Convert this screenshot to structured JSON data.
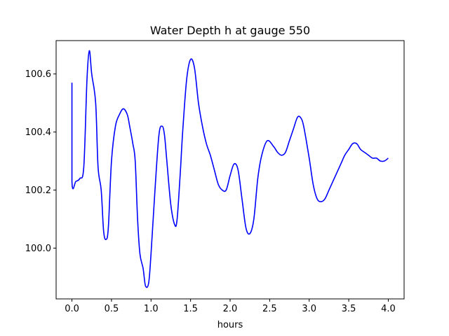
{
  "chart_data": {
    "type": "line",
    "title": "Water Depth h at gauge 550",
    "xlabel": "hours",
    "ylabel": "",
    "xlim": [
      -0.2,
      4.2
    ],
    "ylim": [
      99.825,
      100.715
    ],
    "xticks": [
      0.0,
      0.5,
      1.0,
      1.5,
      2.0,
      2.5,
      3.0,
      3.5,
      4.0
    ],
    "xtick_labels": [
      "0.0",
      "0.5",
      "1.0",
      "1.5",
      "2.0",
      "2.5",
      "3.0",
      "3.5",
      "4.0"
    ],
    "yticks": [
      100.0,
      100.2,
      100.4,
      100.6
    ],
    "ytick_labels": [
      "100.0",
      "100.2",
      "100.4",
      "100.6"
    ],
    "grid": false,
    "series": [
      {
        "name": "",
        "color": "#0000ff",
        "x": [
          0.0,
          0.0,
          0.05,
          0.1,
          0.15,
          0.19,
          0.22,
          0.25,
          0.3,
          0.33,
          0.37,
          0.4,
          0.43,
          0.46,
          0.5,
          0.55,
          0.6,
          0.65,
          0.7,
          0.73,
          0.77,
          0.8,
          0.83,
          0.86,
          0.9,
          0.93,
          0.97,
          1.0,
          1.05,
          1.1,
          1.14,
          1.17,
          1.2,
          1.25,
          1.3,
          1.33,
          1.37,
          1.4,
          1.45,
          1.5,
          1.55,
          1.6,
          1.65,
          1.7,
          1.75,
          1.8,
          1.85,
          1.9,
          1.95,
          2.0,
          2.05,
          2.1,
          2.15,
          2.2,
          2.25,
          2.3,
          2.35,
          2.4,
          2.47,
          2.55,
          2.6,
          2.65,
          2.7,
          2.75,
          2.8,
          2.85,
          2.89,
          2.93,
          3.0,
          3.05,
          3.1,
          3.15,
          3.2,
          3.25,
          3.3,
          3.35,
          3.4,
          3.45,
          3.5,
          3.55,
          3.6,
          3.65,
          3.7,
          3.75,
          3.8,
          3.85,
          3.9,
          3.95,
          4.0
        ],
        "y": [
          100.57,
          100.23,
          100.23,
          100.24,
          100.28,
          100.58,
          100.68,
          100.6,
          100.5,
          100.28,
          100.2,
          100.06,
          100.03,
          100.07,
          100.3,
          100.42,
          100.46,
          100.48,
          100.46,
          100.42,
          100.36,
          100.3,
          100.1,
          99.98,
          99.93,
          99.87,
          99.88,
          99.98,
          100.2,
          100.39,
          100.42,
          100.39,
          100.3,
          100.15,
          100.08,
          100.1,
          100.26,
          100.4,
          100.58,
          100.65,
          100.62,
          100.5,
          100.42,
          100.36,
          100.32,
          100.27,
          100.22,
          100.2,
          100.2,
          100.25,
          100.29,
          100.27,
          100.17,
          100.07,
          100.05,
          100.1,
          100.24,
          100.32,
          100.37,
          100.35,
          100.33,
          100.32,
          100.33,
          100.37,
          100.41,
          100.45,
          100.45,
          100.42,
          100.31,
          100.22,
          100.17,
          100.16,
          100.17,
          100.2,
          100.23,
          100.26,
          100.29,
          100.32,
          100.34,
          100.36,
          100.36,
          100.34,
          100.33,
          100.32,
          100.31,
          100.31,
          100.3,
          100.3,
          100.31
        ]
      }
    ]
  }
}
